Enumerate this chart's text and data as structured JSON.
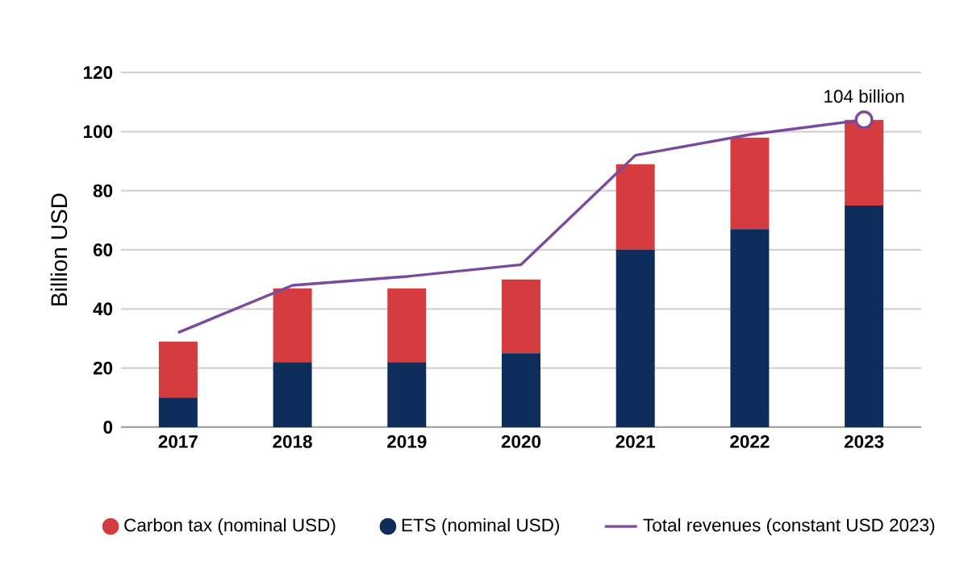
{
  "chart_data": {
    "type": "bar",
    "stacked": true,
    "ylabel": "Billion USD",
    "categories": [
      "2017",
      "2018",
      "2019",
      "2020",
      "2021",
      "2022",
      "2023"
    ],
    "series": [
      {
        "name": "ETS  (nominal USD)",
        "color": "#0f2d5a",
        "values": [
          10,
          22,
          22,
          25,
          60,
          67,
          75
        ]
      },
      {
        "name": "Carbon tax (nominal USD)",
        "color": "#d43c3f",
        "values": [
          19,
          25,
          25,
          25,
          29,
          31,
          29
        ]
      },
      {
        "name": "Total revenues (constant USD 2023)",
        "type": "line",
        "color": "#7a4a9e",
        "values": [
          32,
          48,
          51,
          55,
          92,
          99,
          104
        ]
      }
    ],
    "ylim": [
      0,
      120
    ],
    "yticks": [
      0,
      20,
      40,
      60,
      80,
      100,
      120
    ],
    "grid": "y",
    "legend": "bottom",
    "marker": "none",
    "line_style": "solid",
    "annotations": [
      {
        "text": "104 billion",
        "x": "2023",
        "y": 104
      }
    ]
  }
}
